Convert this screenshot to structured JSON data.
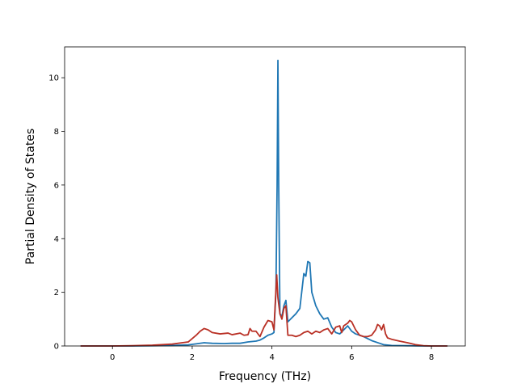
{
  "chart_data": {
    "type": "line",
    "title": "",
    "xlabel": "Frequency (THz)",
    "ylabel": "Partial Density of States",
    "xlim": [
      -1.2,
      8.85
    ],
    "ylim": [
      0,
      11.15
    ],
    "xticks": [
      0,
      2,
      4,
      6,
      8
    ],
    "yticks": [
      0,
      2,
      4,
      6,
      8,
      10
    ],
    "grid": false,
    "legend": "none",
    "series": [
      {
        "color": "#1f77b4",
        "points": [
          [
            -0.8,
            0
          ],
          [
            0,
            0
          ],
          [
            0.5,
            0
          ],
          [
            1.0,
            0.01
          ],
          [
            1.5,
            0.02
          ],
          [
            1.9,
            0.04
          ],
          [
            2.1,
            0.08
          ],
          [
            2.3,
            0.12
          ],
          [
            2.5,
            0.1
          ],
          [
            2.8,
            0.09
          ],
          [
            3.0,
            0.1
          ],
          [
            3.2,
            0.1
          ],
          [
            3.4,
            0.15
          ],
          [
            3.6,
            0.18
          ],
          [
            3.7,
            0.22
          ],
          [
            3.8,
            0.3
          ],
          [
            3.9,
            0.4
          ],
          [
            4.0,
            0.45
          ],
          [
            4.05,
            0.5
          ],
          [
            4.1,
            2.0
          ],
          [
            4.13,
            6.0
          ],
          [
            4.15,
            10.65
          ],
          [
            4.17,
            6.0
          ],
          [
            4.2,
            1.2
          ],
          [
            4.25,
            1.1
          ],
          [
            4.3,
            1.5
          ],
          [
            4.35,
            1.7
          ],
          [
            4.4,
            0.9
          ],
          [
            4.5,
            1.05
          ],
          [
            4.6,
            1.2
          ],
          [
            4.7,
            1.4
          ],
          [
            4.8,
            2.7
          ],
          [
            4.85,
            2.6
          ],
          [
            4.9,
            3.15
          ],
          [
            4.95,
            3.1
          ],
          [
            5.0,
            2.0
          ],
          [
            5.1,
            1.5
          ],
          [
            5.2,
            1.2
          ],
          [
            5.3,
            1.0
          ],
          [
            5.4,
            1.05
          ],
          [
            5.5,
            0.7
          ],
          [
            5.6,
            0.5
          ],
          [
            5.7,
            0.45
          ],
          [
            5.8,
            0.6
          ],
          [
            5.9,
            0.75
          ],
          [
            6.0,
            0.55
          ],
          [
            6.1,
            0.45
          ],
          [
            6.3,
            0.35
          ],
          [
            6.5,
            0.2
          ],
          [
            6.7,
            0.1
          ],
          [
            6.8,
            0.05
          ],
          [
            7.0,
            0.02
          ],
          [
            7.4,
            0.01
          ],
          [
            7.8,
            0
          ],
          [
            8.4,
            0
          ]
        ]
      },
      {
        "color": "#b93025",
        "points": [
          [
            -0.8,
            0
          ],
          [
            0,
            0
          ],
          [
            0.5,
            0.01
          ],
          [
            1.0,
            0.03
          ],
          [
            1.5,
            0.07
          ],
          [
            1.9,
            0.15
          ],
          [
            2.1,
            0.4
          ],
          [
            2.2,
            0.55
          ],
          [
            2.3,
            0.65
          ],
          [
            2.4,
            0.6
          ],
          [
            2.5,
            0.5
          ],
          [
            2.7,
            0.45
          ],
          [
            2.9,
            0.48
          ],
          [
            3.0,
            0.42
          ],
          [
            3.2,
            0.48
          ],
          [
            3.3,
            0.4
          ],
          [
            3.4,
            0.42
          ],
          [
            3.45,
            0.65
          ],
          [
            3.5,
            0.55
          ],
          [
            3.6,
            0.55
          ],
          [
            3.7,
            0.35
          ],
          [
            3.8,
            0.7
          ],
          [
            3.9,
            0.95
          ],
          [
            4.0,
            0.9
          ],
          [
            4.05,
            0.6
          ],
          [
            4.08,
            1.5
          ],
          [
            4.12,
            2.65
          ],
          [
            4.15,
            1.8
          ],
          [
            4.2,
            1.2
          ],
          [
            4.25,
            1.0
          ],
          [
            4.3,
            1.4
          ],
          [
            4.35,
            1.5
          ],
          [
            4.4,
            0.4
          ],
          [
            4.5,
            0.4
          ],
          [
            4.6,
            0.35
          ],
          [
            4.7,
            0.4
          ],
          [
            4.8,
            0.5
          ],
          [
            4.9,
            0.55
          ],
          [
            5.0,
            0.45
          ],
          [
            5.1,
            0.55
          ],
          [
            5.2,
            0.5
          ],
          [
            5.3,
            0.6
          ],
          [
            5.4,
            0.65
          ],
          [
            5.5,
            0.45
          ],
          [
            5.6,
            0.7
          ],
          [
            5.7,
            0.75
          ],
          [
            5.75,
            0.5
          ],
          [
            5.8,
            0.75
          ],
          [
            5.9,
            0.85
          ],
          [
            5.95,
            0.95
          ],
          [
            6.0,
            0.9
          ],
          [
            6.1,
            0.6
          ],
          [
            6.2,
            0.4
          ],
          [
            6.3,
            0.35
          ],
          [
            6.4,
            0.35
          ],
          [
            6.5,
            0.4
          ],
          [
            6.6,
            0.6
          ],
          [
            6.65,
            0.8
          ],
          [
            6.7,
            0.75
          ],
          [
            6.75,
            0.6
          ],
          [
            6.8,
            0.8
          ],
          [
            6.85,
            0.45
          ],
          [
            6.9,
            0.3
          ],
          [
            7.0,
            0.25
          ],
          [
            7.2,
            0.18
          ],
          [
            7.4,
            0.12
          ],
          [
            7.6,
            0.05
          ],
          [
            7.8,
            0.01
          ],
          [
            8.0,
            0
          ],
          [
            8.4,
            0
          ]
        ]
      }
    ]
  }
}
